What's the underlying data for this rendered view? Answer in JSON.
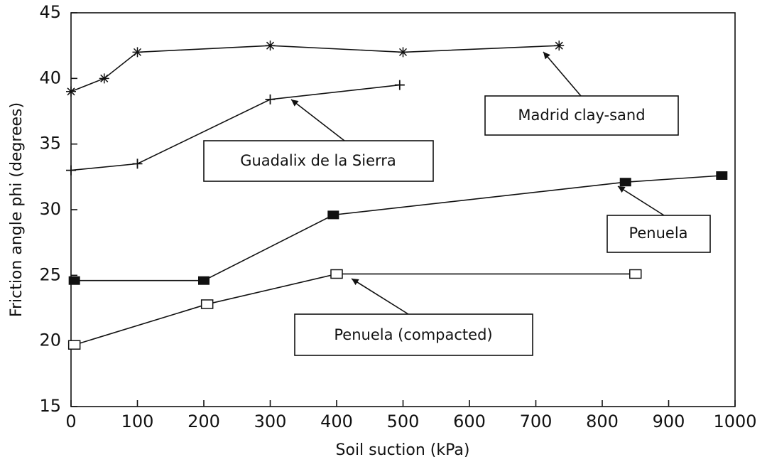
{
  "chart_data": {
    "type": "line",
    "x_label": "Soil suction (kPa)",
    "y_label": "Friction angle phi (degrees)",
    "xlim": [
      0,
      1000
    ],
    "xticks": [
      0,
      100,
      200,
      300,
      400,
      500,
      600,
      700,
      800,
      900,
      1000
    ],
    "ylim": [
      15,
      45
    ],
    "yticks": [
      15,
      20,
      25,
      30,
      35,
      40,
      45
    ],
    "color": "#111111",
    "series": [
      {
        "name": "Madrid clay-sand",
        "marker": "asterisk",
        "x": [
          0,
          50,
          100,
          300,
          500,
          735
        ],
        "values": [
          39,
          40,
          42,
          42.5,
          42,
          42.5
        ]
      },
      {
        "name": "Guadalix de la Sierra",
        "marker": "plus",
        "x": [
          0,
          100,
          300,
          495
        ],
        "values": [
          33,
          33.5,
          38.4,
          39.5
        ]
      },
      {
        "name": "Penuela",
        "marker": "filled-square",
        "x": [
          5,
          200,
          395,
          835,
          980
        ],
        "values": [
          24.6,
          24.6,
          29.6,
          32.1,
          32.6
        ]
      },
      {
        "name": "Penuela (compacted)",
        "marker": "open-square",
        "x": [
          5,
          205,
          400,
          850
        ],
        "values": [
          19.7,
          22.8,
          25.1,
          25.1
        ]
      }
    ]
  }
}
